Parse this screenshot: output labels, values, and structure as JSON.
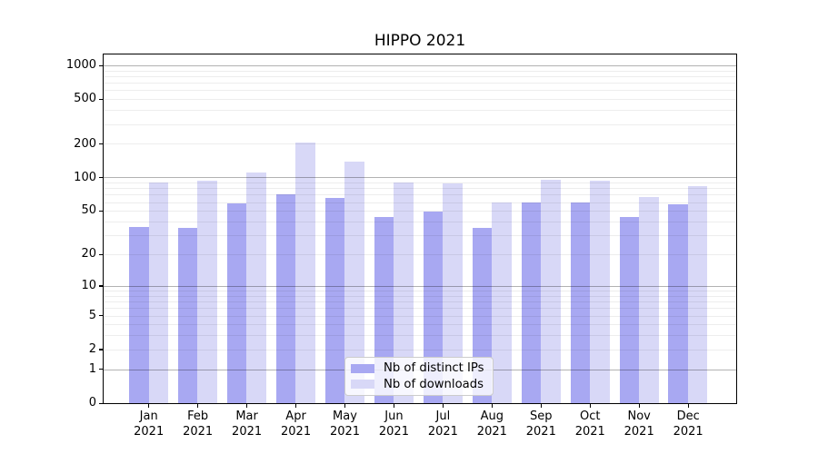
{
  "title": "HIPPO 2021",
  "chart_data": {
    "type": "bar",
    "title": "HIPPO 2021",
    "categories": [
      "Jan",
      "Feb",
      "Mar",
      "Apr",
      "May",
      "Jun",
      "Jul",
      "Aug",
      "Sep",
      "Oct",
      "Nov",
      "Dec"
    ],
    "x_tick_year": "2021",
    "series": [
      {
        "name": "Nb of distinct IPs",
        "color": "#a8a8f2",
        "values": [
          36,
          35,
          58,
          71,
          65,
          44,
          49,
          35,
          60,
          60,
          44,
          57
        ]
      },
      {
        "name": "Nb of downloads",
        "color": "#d8d8f7",
        "values": [
          90,
          93,
          110,
          207,
          139,
          91,
          89,
          60,
          96,
          93,
          67,
          83
        ]
      }
    ],
    "xlabel": "",
    "ylabel": "",
    "yscale": "log1p",
    "yticks": [
      1000,
      500,
      200,
      100,
      50,
      20,
      10,
      5,
      2,
      1,
      0
    ],
    "ylim": [
      0,
      1260
    ],
    "grid": {
      "enabled": true,
      "which": "both",
      "major_values": [
        1,
        10,
        100,
        1000
      ],
      "minor_values": [
        2,
        3,
        4,
        5,
        6,
        7,
        8,
        9,
        20,
        30,
        40,
        50,
        60,
        70,
        80,
        90,
        200,
        300,
        400,
        500,
        600,
        700,
        800,
        900
      ],
      "major_color": "rgba(0,0,0,0.30)",
      "minor_color": "rgba(0,0,0,0.07)",
      "drawn_over_bars": true
    },
    "legend": {
      "position": "lower-center",
      "entries": [
        "Nb of distinct IPs",
        "Nb of downloads"
      ]
    },
    "colors": {
      "background": "#ffffff",
      "spine": "#000000",
      "text": "#000000"
    }
  }
}
